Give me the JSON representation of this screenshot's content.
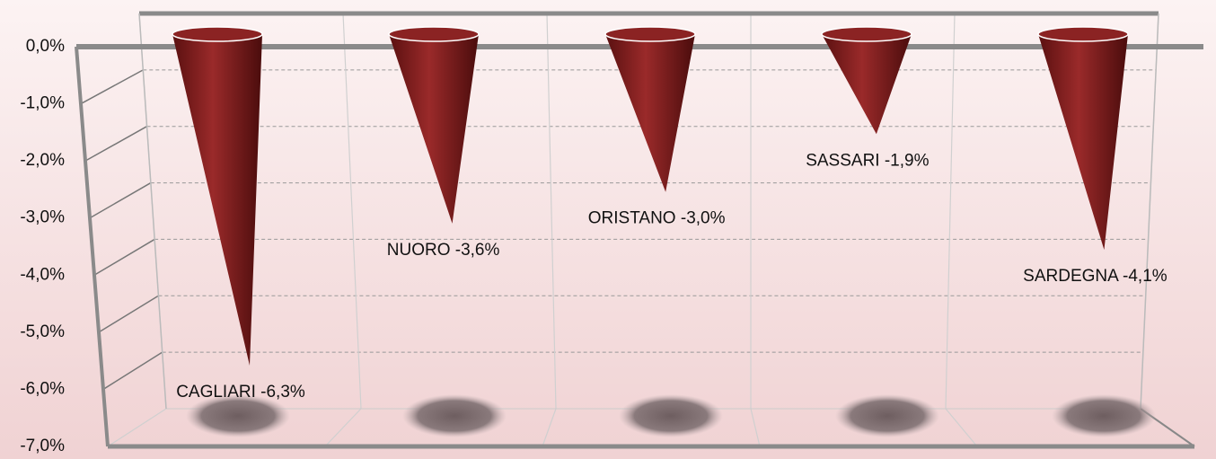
{
  "chart_data": {
    "type": "cone",
    "categories": [
      "CAGLIARI",
      "NUORO",
      "ORISTANO",
      "SASSARI",
      "SARDEGNA"
    ],
    "values": [
      -6.3,
      -3.6,
      -3.0,
      -1.9,
      -4.1
    ],
    "value_labels": [
      "CAGLIARI -6,3%",
      "NUORO -3,6%",
      "ORISTANO -3,0%",
      "SASSARI  -1,9%",
      "SARDEGNA -4,1%"
    ],
    "color": "#8b2323",
    "ylim": [
      -7,
      0
    ],
    "yticks": [
      {
        "value": 0,
        "label": "0,0%"
      },
      {
        "value": -1,
        "label": "-1,0%"
      },
      {
        "value": -2,
        "label": "-2,0%"
      },
      {
        "value": -3,
        "label": "-3,0%"
      },
      {
        "value": -4,
        "label": "-4,0%"
      },
      {
        "value": -5,
        "label": "-5,0%"
      },
      {
        "value": -6,
        "label": "-6,0%"
      },
      {
        "value": -7,
        "label": "-7,0%"
      }
    ],
    "grid": true
  }
}
